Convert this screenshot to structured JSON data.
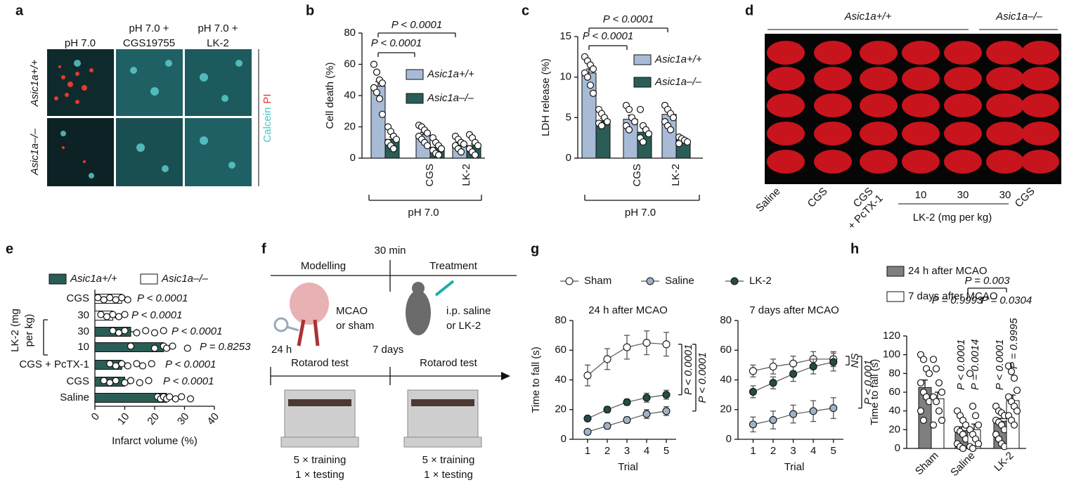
{
  "panel_a": {
    "panel": "a",
    "columns": [
      [
        "pH 7.0"
      ],
      [
        "pH 7.0 +",
        "CGS19755"
      ],
      [
        "pH 7.0 +",
        "LK-2"
      ]
    ],
    "rows": [
      "Asic1a+/+",
      "Asic1a–/–"
    ],
    "stains": [
      "Calcein",
      "PI"
    ]
  },
  "panel_d": {
    "panel": "d",
    "groups": [
      "Asic1a+/+",
      "Asic1a–/–"
    ],
    "columns": [
      [
        "Saline"
      ],
      [
        "CGS"
      ],
      [
        "CGS",
        "+ PcTX-1"
      ],
      [
        "10"
      ],
      [
        "30"
      ],
      [
        "30"
      ],
      [
        "CGS"
      ]
    ],
    "dose_label": "LK-2 (mg per kg)"
  },
  "panel_f": {
    "panel": "f",
    "time_top": "30 min",
    "phases": [
      "Modelling",
      "Treatment"
    ],
    "labels": [
      [
        "MCAO",
        "or sham"
      ],
      [
        "i.p. saline",
        "or LK-2"
      ]
    ],
    "times": [
      "24 h",
      "7 days"
    ],
    "tests": [
      "Rotarod test",
      "Rotarod test"
    ],
    "protocol": [
      [
        "5 × training",
        "1 × testing"
      ],
      [
        "5 × training",
        "1 × testing"
      ]
    ]
  },
  "chart_data": [
    {
      "type": "bar",
      "panel": "b",
      "categories": [
        null,
        "CGS",
        "LK-2"
      ],
      "group_label": "pH 7.0",
      "ylabel": "Cell death (%)",
      "ylim": [
        0,
        80
      ],
      "yticks": [
        0,
        20,
        40,
        60,
        80
      ],
      "series": [
        {
          "name": "Asic1a+/+",
          "color": "#a7bad6",
          "values": [
            46,
            15,
            9
          ],
          "errors": [
            3,
            1.5,
            1.5
          ],
          "points": [
            [
              60,
              55,
              50,
              48,
              45,
              42,
              38,
              28
            ],
            [
              21,
              20,
              18,
              16,
              14,
              12,
              10,
              8
            ],
            [
              14,
              12,
              10,
              9,
              8,
              6,
              4
            ]
          ]
        },
        {
          "name": "Asic1a–/–",
          "color": "#2a5d55",
          "values": [
            12,
            7,
            8
          ],
          "errors": [
            1.5,
            1,
            1
          ],
          "points": [
            [
              20,
              17,
              14,
              12,
              10,
              8,
              6
            ],
            [
              13,
              10,
              8,
              6,
              5,
              3,
              2
            ],
            [
              15,
              13,
              10,
              8,
              6,
              4,
              2
            ]
          ]
        }
      ],
      "annotations": [
        "P < 0.0001",
        "P < 0.0001"
      ]
    },
    {
      "type": "bar",
      "panel": "c",
      "categories": [
        null,
        "CGS",
        "LK-2"
      ],
      "group_label": "pH 7.0",
      "ylabel": "LDH release (%)",
      "ylim": [
        0,
        15
      ],
      "yticks": [
        0,
        5,
        10,
        15
      ],
      "series": [
        {
          "name": "Asic1a+/+",
          "color": "#a7bad6",
          "values": [
            10.5,
            4.8,
            5.4
          ],
          "errors": [
            0.5,
            0.5,
            0.4
          ],
          "points": [
            [
              12.5,
              12,
              11.5,
              11,
              10.5,
              10,
              9,
              8
            ],
            [
              6.5,
              6,
              5,
              4.5,
              4,
              3.5
            ],
            [
              6.5,
              6,
              5.5,
              5,
              4.5,
              4,
              3.5
            ]
          ]
        },
        {
          "name": "Asic1a–/–",
          "color": "#2a5d55",
          "values": [
            4.6,
            3.2,
            2.2
          ],
          "errors": [
            0.3,
            0.4,
            0.2
          ],
          "points": [
            [
              6,
              5.5,
              5,
              4.5,
              4.3,
              4
            ],
            [
              6,
              4,
              3.5,
              3,
              2.5,
              2
            ],
            [
              2.6,
              2.4,
              2.2,
              2,
              1.8
            ]
          ]
        }
      ],
      "annotations": [
        "P < 0.0001",
        "P < 0.0001"
      ]
    },
    {
      "type": "hbar",
      "panel": "e",
      "categories": [
        "CGS",
        "30",
        "30",
        "10",
        "CGS + PcTX-1",
        "CGS",
        "Saline"
      ],
      "group_label": [
        "LK-2 (mg",
        "per kg)"
      ],
      "xlabel": "Infarct volume (%)",
      "xlim": [
        0,
        40
      ],
      "xticks": [
        0,
        10,
        20,
        30,
        40
      ],
      "series": [
        {
          "name": "Asic1a+/+",
          "color": "#2a5d55",
          "values": [
            null,
            null,
            12,
            23,
            9,
            10,
            24
          ],
          "errors": [
            null,
            null,
            2,
            2,
            1,
            1.5,
            0.7
          ],
          "points": [
            [],
            [],
            [
              6,
              8,
              10,
              14,
              17,
              20,
              23
            ],
            [
              12,
              20,
              23,
              24,
              26,
              31
            ],
            [
              5,
              7,
              9,
              11,
              14,
              16,
              19
            ],
            [
              3,
              5,
              7,
              10,
              12,
              15,
              18
            ],
            [
              21,
              22,
              23,
              24,
              25,
              27,
              29,
              32
            ]
          ]
        },
        {
          "name": "Asic1a–/–",
          "color": "#ffffff",
          "values": [
            9,
            6,
            null,
            null,
            null,
            null,
            null
          ],
          "errors": [
            1,
            0.8,
            null,
            null,
            null,
            null,
            null
          ],
          "points": [
            [
              1,
              3,
              5,
              7,
              9,
              11
            ],
            [
              2,
              4,
              6,
              8,
              10
            ],
            [],
            [],
            [],
            [],
            []
          ]
        }
      ],
      "annotations": [
        "P < 0.0001",
        "P < 0.0001",
        "P < 0.0001",
        "P = 0.8253",
        "P < 0.0001",
        "P < 0.0001"
      ]
    },
    {
      "type": "line",
      "panel": "g",
      "title": "24 h after MCAO",
      "xlabel": "Trial",
      "ylabel": "Time to fall (s)",
      "x": [
        1,
        2,
        3,
        4,
        5
      ],
      "xlim": [
        0.25,
        5.5
      ],
      "xticks": [
        1,
        2,
        3,
        4,
        5
      ],
      "ylim": [
        0,
        80
      ],
      "yticks": [
        0,
        20,
        40,
        60,
        80
      ],
      "series": [
        {
          "name": "Sham",
          "color": "#ffffff",
          "values": [
            43,
            54,
            62,
            65,
            64
          ],
          "errors": [
            7,
            7,
            8,
            8,
            8
          ]
        },
        {
          "name": "Saline",
          "color": "#9fb2cc",
          "values": [
            5,
            9,
            13,
            17,
            19
          ],
          "errors": [
            1,
            2,
            2,
            3,
            3
          ]
        },
        {
          "name": "LK-2",
          "color": "#234d45",
          "values": [
            14,
            20,
            25,
            28,
            30
          ],
          "errors": [
            1,
            2,
            2,
            3,
            3
          ]
        }
      ],
      "annotations": [
        "P < 0.0001",
        "P < 0.0001"
      ]
    },
    {
      "type": "line",
      "title": "7 days after MCAO",
      "xlabel": "Trial",
      "x": [
        1,
        2,
        3,
        4,
        5
      ],
      "xlim": [
        0.25,
        5.5
      ],
      "xticks": [
        1,
        2,
        3,
        4,
        5
      ],
      "ylim": [
        0,
        80
      ],
      "yticks": [
        0,
        20,
        40,
        60,
        80
      ],
      "series": [
        {
          "color": "#ffffff",
          "values": [
            46,
            49,
            51,
            54,
            54
          ],
          "errors": [
            4,
            5,
            5,
            5,
            5
          ]
        },
        {
          "color": "#9fb2cc",
          "values": [
            10,
            13,
            17,
            19,
            21
          ],
          "errors": [
            5,
            6,
            6,
            7,
            7
          ]
        },
        {
          "color": "#234d45",
          "values": [
            32,
            38,
            44,
            49,
            52
          ],
          "errors": [
            4,
            4,
            5,
            5,
            6
          ]
        }
      ],
      "annotations": [
        "NS",
        "P < 0.001"
      ]
    },
    {
      "type": "bar",
      "panel": "h",
      "categories": [
        "Sham",
        "Saline",
        "LK-2"
      ],
      "ylabel": "Time to fall (s)",
      "ylim": [
        0,
        120
      ],
      "yticks": [
        0,
        20,
        40,
        60,
        80,
        100,
        120
      ],
      "series": [
        {
          "name": "24 h after MCAO",
          "color": "#7f7f7f",
          "values": [
            65,
            19,
            29
          ],
          "errors": [
            8,
            4,
            3
          ],
          "points": [
            [
              100,
              95,
              85,
              80,
              70,
              60,
              55,
              50,
              40,
              30
            ],
            [
              40,
              35,
              30,
              25,
              20,
              18,
              15,
              10,
              5,
              2,
              0
            ],
            [
              45,
              40,
              38,
              35,
              30,
              28,
              25,
              20,
              15,
              10,
              5,
              2
            ]
          ]
        },
        {
          "name": "7 days after MCAO",
          "color": "#ffffff",
          "values": [
            53,
            20,
            51
          ],
          "errors": [
            7,
            6,
            6
          ],
          "points": [
            [
              95,
              85,
              70,
              60,
              55,
              50,
              40,
              30,
              25
            ],
            [
              80,
              45,
              35,
              25,
              20,
              15,
              10,
              5,
              2,
              0
            ],
            [
              88,
              82,
              75,
              62,
              55,
              50,
              45,
              40,
              35,
              30,
              25
            ]
          ]
        }
      ],
      "annotations": [
        "P = 0.003",
        "P = 0.9993",
        "P = 0.0304",
        "P < 0.0001",
        "P = 0.0014",
        "P < 0.0001",
        "P = 0.9995"
      ]
    }
  ]
}
